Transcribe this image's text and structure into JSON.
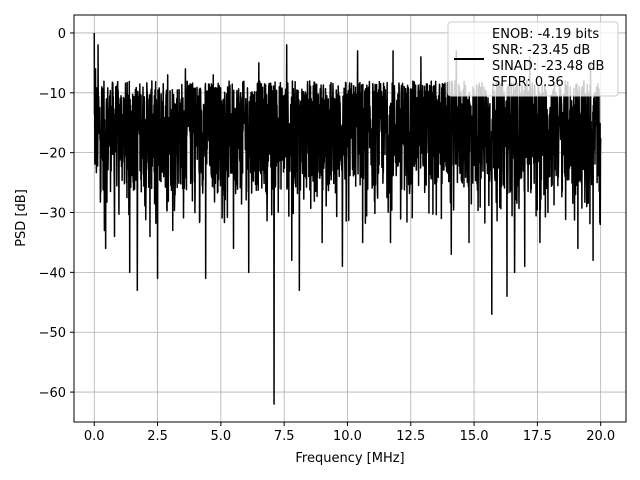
{
  "chart_data": {
    "type": "line",
    "title": "",
    "xlabel": "Frequency [MHz]",
    "ylabel": "PSD [dB]",
    "xlim": [
      -0.8,
      21.0
    ],
    "ylim": [
      -65.0,
      3.0
    ],
    "x_ticks": [
      0.0,
      2.5,
      5.0,
      7.5,
      10.0,
      12.5,
      15.0,
      17.5,
      20.0
    ],
    "x_tick_labels": [
      "0.0",
      "2.5",
      "5.0",
      "7.5",
      "10.0",
      "12.5",
      "15.0",
      "17.5",
      "20.0"
    ],
    "y_ticks": [
      0,
      -10,
      -20,
      -30,
      -40,
      -50,
      -60
    ],
    "y_tick_labels": [
      "0",
      "−10",
      "−20",
      "−30",
      "−40",
      "−50",
      "−60"
    ],
    "grid": true,
    "legend_position": "top-right",
    "series": [
      {
        "name": "ENOB: -4.19 bits\nSNR: -23.45 dB\nSINAD: -23.48 dB\nSFDR: 0.36",
        "color": "#000000",
        "noise_band_db": [
          -27,
          -8
        ],
        "x_range": [
          0.0,
          20.0
        ],
        "spikes_up": [
          {
            "x": 0.0,
            "y": 0.0
          },
          {
            "x": 0.05,
            "y": -6
          },
          {
            "x": 0.15,
            "y": -2
          },
          {
            "x": 0.3,
            "y": -9
          },
          {
            "x": 2.9,
            "y": -7
          },
          {
            "x": 3.6,
            "y": -6
          },
          {
            "x": 4.7,
            "y": -7
          },
          {
            "x": 6.5,
            "y": -5
          },
          {
            "x": 7.6,
            "y": -2
          },
          {
            "x": 8.1,
            "y": -4
          },
          {
            "x": 10.4,
            "y": -3
          },
          {
            "x": 11.8,
            "y": -3
          },
          {
            "x": 12.9,
            "y": -4
          },
          {
            "x": 14.3,
            "y": -3
          },
          {
            "x": 17.2,
            "y": -4
          },
          {
            "x": 19.6,
            "y": -5
          }
        ],
        "spikes_down": [
          {
            "x": 0.4,
            "y": -33
          },
          {
            "x": 0.45,
            "y": -36
          },
          {
            "x": 0.8,
            "y": -34
          },
          {
            "x": 1.4,
            "y": -40
          },
          {
            "x": 1.7,
            "y": -43
          },
          {
            "x": 2.2,
            "y": -34
          },
          {
            "x": 2.5,
            "y": -41
          },
          {
            "x": 3.1,
            "y": -33
          },
          {
            "x": 4.4,
            "y": -41
          },
          {
            "x": 5.5,
            "y": -36
          },
          {
            "x": 6.1,
            "y": -40
          },
          {
            "x": 7.1,
            "y": -62
          },
          {
            "x": 7.8,
            "y": -38
          },
          {
            "x": 8.1,
            "y": -43
          },
          {
            "x": 9.0,
            "y": -35
          },
          {
            "x": 9.8,
            "y": -39
          },
          {
            "x": 10.6,
            "y": -35
          },
          {
            "x": 11.7,
            "y": -35
          },
          {
            "x": 14.1,
            "y": -37
          },
          {
            "x": 14.8,
            "y": -35
          },
          {
            "x": 15.7,
            "y": -47
          },
          {
            "x": 16.3,
            "y": -44
          },
          {
            "x": 16.6,
            "y": -40
          },
          {
            "x": 17.0,
            "y": -39
          },
          {
            "x": 17.6,
            "y": -35
          },
          {
            "x": 19.1,
            "y": -36
          },
          {
            "x": 19.7,
            "y": -38
          }
        ]
      }
    ]
  }
}
